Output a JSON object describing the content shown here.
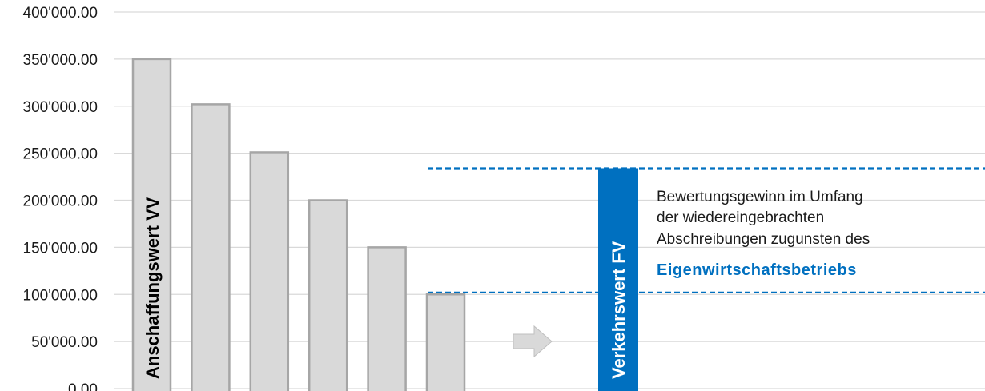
{
  "chart_data": {
    "type": "bar",
    "ylim": [
      0,
      400000
    ],
    "yticks": [
      0,
      50000,
      100000,
      150000,
      200000,
      250000,
      300000,
      350000,
      400000
    ],
    "ytick_labels": [
      "0.00",
      "50'000.00",
      "100'000.00",
      "150'000.00",
      "200'000.00",
      "250'000.00",
      "300'000.00",
      "350'000.00",
      "400'000.00"
    ],
    "grid": true,
    "values": [
      350000,
      302000,
      251000,
      200000,
      150000,
      100000
    ],
    "bar_color": "#d9d9d9",
    "bar_label": "Anschaffungswert VV",
    "fair_value": 234000,
    "fair_value_label": "Verkehrswert FV",
    "fair_value_color": "#0070c0",
    "reference_lines": [
      234000,
      102000
    ],
    "annotation": {
      "lines": [
        "Bewertungsgewinn im Umfang",
        "der wiedereingebrachten",
        "Abschreibungen zugunsten des"
      ],
      "emphasis": "Eigenwirtschaftsbetriebs",
      "emphasis_color": "#0070c0"
    },
    "arrow": "right-arrow-icon"
  }
}
